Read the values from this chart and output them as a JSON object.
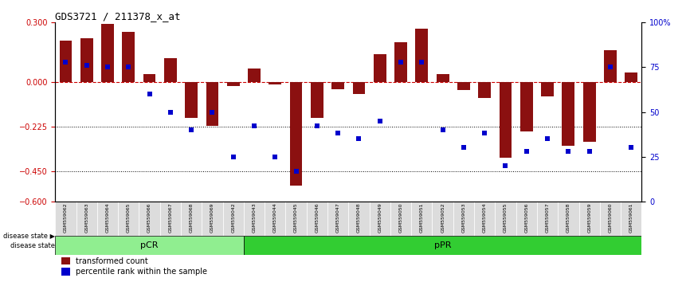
{
  "title": "GDS3721 / 211378_x_at",
  "categories": [
    "GSM559062",
    "GSM559063",
    "GSM559064",
    "GSM559065",
    "GSM559066",
    "GSM559067",
    "GSM559068",
    "GSM559069",
    "GSM559042",
    "GSM559043",
    "GSM559044",
    "GSM559045",
    "GSM559046",
    "GSM559047",
    "GSM559048",
    "GSM559049",
    "GSM559050",
    "GSM559051",
    "GSM559052",
    "GSM559053",
    "GSM559054",
    "GSM559055",
    "GSM559056",
    "GSM559057",
    "GSM559058",
    "GSM559059",
    "GSM559060",
    "GSM559061"
  ],
  "bar_values": [
    0.21,
    0.22,
    0.295,
    0.255,
    0.04,
    0.12,
    -0.18,
    -0.22,
    -0.02,
    0.07,
    -0.01,
    -0.52,
    -0.18,
    -0.035,
    -0.06,
    0.14,
    0.2,
    0.27,
    0.04,
    -0.04,
    -0.08,
    -0.38,
    -0.25,
    -0.07,
    -0.32,
    -0.3,
    0.16,
    0.05
  ],
  "blue_values": [
    78,
    76,
    75,
    75,
    60,
    50,
    40,
    50,
    25,
    42,
    25,
    17,
    42,
    38,
    35,
    45,
    78,
    78,
    40,
    30,
    38,
    20,
    28,
    35,
    28,
    28,
    75,
    30
  ],
  "pCR_count": 9,
  "pPR_count": 19,
  "bar_color": "#8B1010",
  "blue_color": "#0000CC",
  "zero_line_color": "#CC0000",
  "ylim_left": [
    -0.6,
    0.3
  ],
  "ylim_right": [
    0,
    100
  ],
  "yticks_left": [
    -0.6,
    -0.45,
    -0.225,
    0.0,
    0.3
  ],
  "yticks_right": [
    0,
    25,
    50,
    75,
    100
  ],
  "hline_values": [
    -0.225,
    -0.45
  ],
  "background_color": "#ffffff",
  "pCR_color": "#90EE90",
  "pPR_color": "#32CD32",
  "label_color_bar": "#8B1010",
  "label_color_blue": "#0000CC"
}
